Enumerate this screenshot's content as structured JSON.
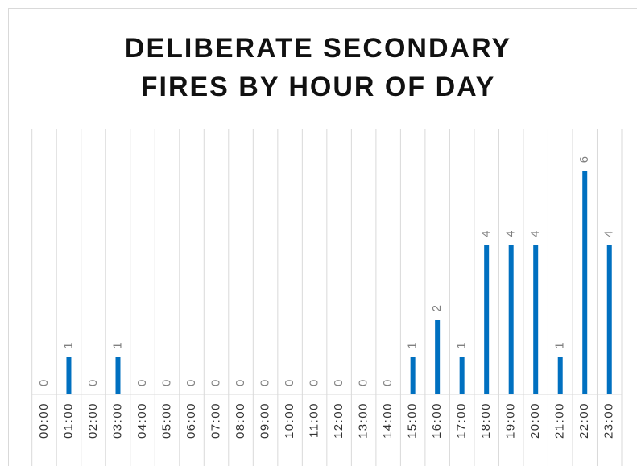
{
  "chart_data": {
    "type": "bar",
    "title": "DELIBERATE SECONDARY FIRES BY HOUR OF DAY",
    "categories": [
      "00:00",
      "01:00",
      "02:00",
      "03:00",
      "04:00",
      "05:00",
      "06:00",
      "07:00",
      "08:00",
      "09:00",
      "10:00",
      "11:00",
      "12:00",
      "13:00",
      "14:00",
      "15:00",
      "16:00",
      "17:00",
      "18:00",
      "19:00",
      "20:00",
      "21:00",
      "22:00",
      "23:00"
    ],
    "values": [
      0,
      1,
      0,
      1,
      0,
      0,
      0,
      0,
      0,
      0,
      0,
      0,
      0,
      0,
      0,
      1,
      2,
      1,
      4,
      4,
      4,
      1,
      6,
      4
    ],
    "color": "#0070c0",
    "ylim": [
      0,
      7
    ],
    "grid": true
  }
}
